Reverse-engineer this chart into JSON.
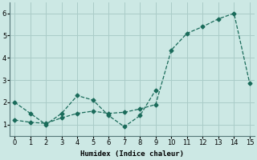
{
  "xlabel": "Humidex (Indice chaleur)",
  "bg_color": "#cce8e4",
  "grid_color": "#aaccc8",
  "line_color": "#1a6b5a",
  "line1_x": [
    0,
    1,
    2,
    3,
    4,
    5,
    6,
    7,
    8,
    9
  ],
  "line1_y": [
    2.0,
    1.5,
    1.0,
    1.5,
    2.3,
    2.1,
    1.4,
    0.9,
    1.4,
    2.55
  ],
  "line2_x": [
    0,
    1,
    2,
    3,
    4,
    5,
    6,
    7,
    8,
    9,
    10,
    11,
    12,
    13,
    14,
    15
  ],
  "line2_y": [
    1.2,
    1.1,
    1.05,
    1.3,
    1.5,
    1.6,
    1.5,
    1.55,
    1.7,
    1.9,
    4.35,
    5.1,
    5.4,
    5.75,
    6.0,
    2.85
  ],
  "xlim": [
    -0.3,
    15.3
  ],
  "ylim": [
    0.5,
    6.5
  ],
  "xticks": [
    0,
    1,
    2,
    3,
    4,
    5,
    6,
    7,
    8,
    9,
    10,
    11,
    12,
    13,
    14,
    15
  ],
  "yticks": [
    1,
    2,
    3,
    4,
    5,
    6
  ]
}
